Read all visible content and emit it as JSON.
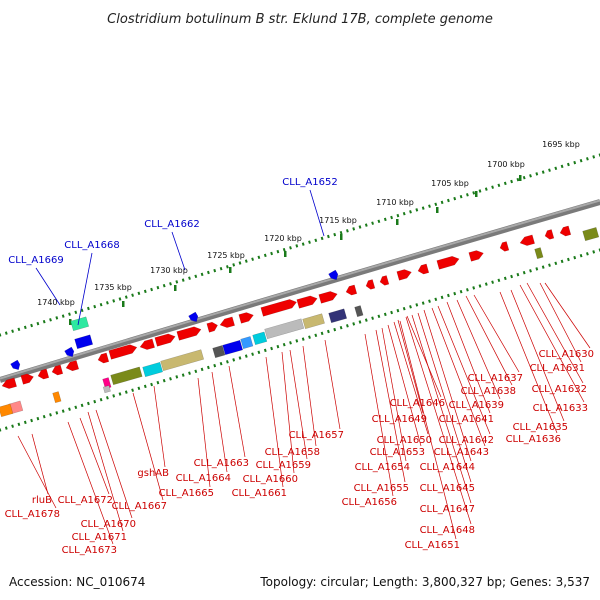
{
  "title": "Clostridium botulinum B str. Eklund 17B, complete genome",
  "footer": {
    "accession": "Accession: NC_010674",
    "summary": "Topology: circular; Length: 3,800,327 bp; Genes: 3,537"
  },
  "scale_ticks": [
    {
      "label": "1695 kbp",
      "pos_kbp": 1695
    },
    {
      "label": "1700 kbp",
      "pos_kbp": 1700
    },
    {
      "label": "1705 kbp",
      "pos_kbp": 1705
    },
    {
      "label": "1710 kbp",
      "pos_kbp": 1710
    },
    {
      "label": "1715 kbp",
      "pos_kbp": 1715
    },
    {
      "label": "1720 kbp",
      "pos_kbp": 1720
    },
    {
      "label": "1725 kbp",
      "pos_kbp": 1725
    },
    {
      "label": "1730 kbp",
      "pos_kbp": 1730
    },
    {
      "label": "1735 kbp",
      "pos_kbp": 1735
    },
    {
      "label": "1740 kbp",
      "pos_kbp": 1740
    }
  ],
  "outer_gene_labels": [
    {
      "text": "CLL_A1652",
      "color": "#0000cc"
    },
    {
      "text": "CLL_A1662",
      "color": "#0000cc"
    },
    {
      "text": "CLL_A1668",
      "color": "#0000cc"
    },
    {
      "text": "CLL_A1669",
      "color": "#0000cc"
    }
  ],
  "inner_gene_labels": [
    {
      "text": "CLL_A1630"
    },
    {
      "text": "CLL_A1631"
    },
    {
      "text": "CLL_A1632"
    },
    {
      "text": "CLL_A1633"
    },
    {
      "text": "CLL_A1635"
    },
    {
      "text": "CLL_A1636"
    },
    {
      "text": "CLL_A1637"
    },
    {
      "text": "CLL_A1638"
    },
    {
      "text": "CLL_A1639"
    },
    {
      "text": "CLL_A1641"
    },
    {
      "text": "CLL_A1642"
    },
    {
      "text": "CLL_A1643"
    },
    {
      "text": "CLL_A1644"
    },
    {
      "text": "CLL_A1645"
    },
    {
      "text": "CLL_A1646"
    },
    {
      "text": "CLL_A1647"
    },
    {
      "text": "CLL_A1648"
    },
    {
      "text": "CLL_A1649"
    },
    {
      "text": "CLL_A1650"
    },
    {
      "text": "CLL_A1651"
    },
    {
      "text": "CLL_A1653"
    },
    {
      "text": "CLL_A1654"
    },
    {
      "text": "CLL_A1655"
    },
    {
      "text": "CLL_A1656"
    },
    {
      "text": "CLL_A1657"
    },
    {
      "text": "CLL_A1658"
    },
    {
      "text": "CLL_A1659"
    },
    {
      "text": "CLL_A1660"
    },
    {
      "text": "CLL_A1661"
    },
    {
      "text": "CLL_A1663"
    },
    {
      "text": "CLL_A1664"
    },
    {
      "text": "CLL_A1665"
    },
    {
      "text": "gshAB"
    },
    {
      "text": "CLL_A1667"
    },
    {
      "text": "CLL_A1670"
    },
    {
      "text": "CLL_A1671"
    },
    {
      "text": "CLL_A1672"
    },
    {
      "text": "CLL_A1673"
    },
    {
      "text": "rluB"
    },
    {
      "text": "CLL_A1678"
    }
  ],
  "colors": {
    "backbone": "#7a7a7a",
    "gene_default": "#ee0000",
    "tick_green": "#1a7a1a",
    "label_red": "#cc0000",
    "label_blue": "#0000cc",
    "feature_blue": "#0000ee",
    "feature_olive": "#7a8a1a",
    "feature_khaki": "#c8b870",
    "feature_cyan": "#00ccdd",
    "feature_teal": "#2ee8a0",
    "feature_gray": "#bbbbbb",
    "feature_darkgray": "#555555",
    "feature_navy": "#333377",
    "feature_orange": "#ff8800",
    "feature_pink": "#ff8888",
    "feature_magenta": "#ff0088"
  }
}
